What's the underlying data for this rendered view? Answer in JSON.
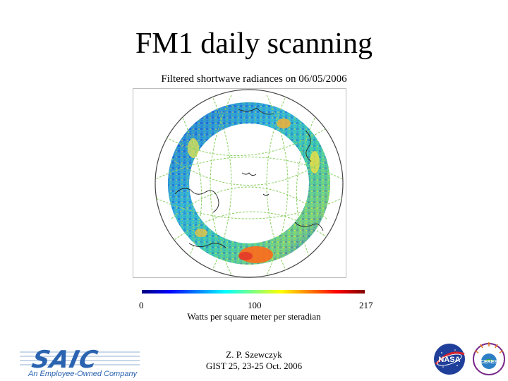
{
  "slide": {
    "title": "FM1 daily scanning"
  },
  "figure": {
    "title": "Filtered shortwave radiances on 06/05/2006",
    "projection": "north-polar-stereographic",
    "colorbar": {
      "colormap": "jet",
      "tick_labels": [
        "0",
        "100",
        "217"
      ],
      "min": 0,
      "mid": 100,
      "max": 217,
      "units_label": "Watts per square meter per steradian"
    },
    "colors": {
      "scan_track": "#8fd16a",
      "coastline": "#222222",
      "swath_low": "#1e5bd0",
      "swath_mid": "#36c2b0",
      "swath_high": "#ff6a1a"
    }
  },
  "credit": {
    "author": "Z. P. Szewczyk",
    "event": "GIST 25, 23-25 Oct. 2006"
  },
  "logos": {
    "saic": {
      "wordmark": "SAIC",
      "tagline": "An Employee-Owned Company"
    },
    "nasa": {
      "wordmark": "NASA"
    },
    "ceres": {
      "wordmark": "CERES"
    }
  }
}
